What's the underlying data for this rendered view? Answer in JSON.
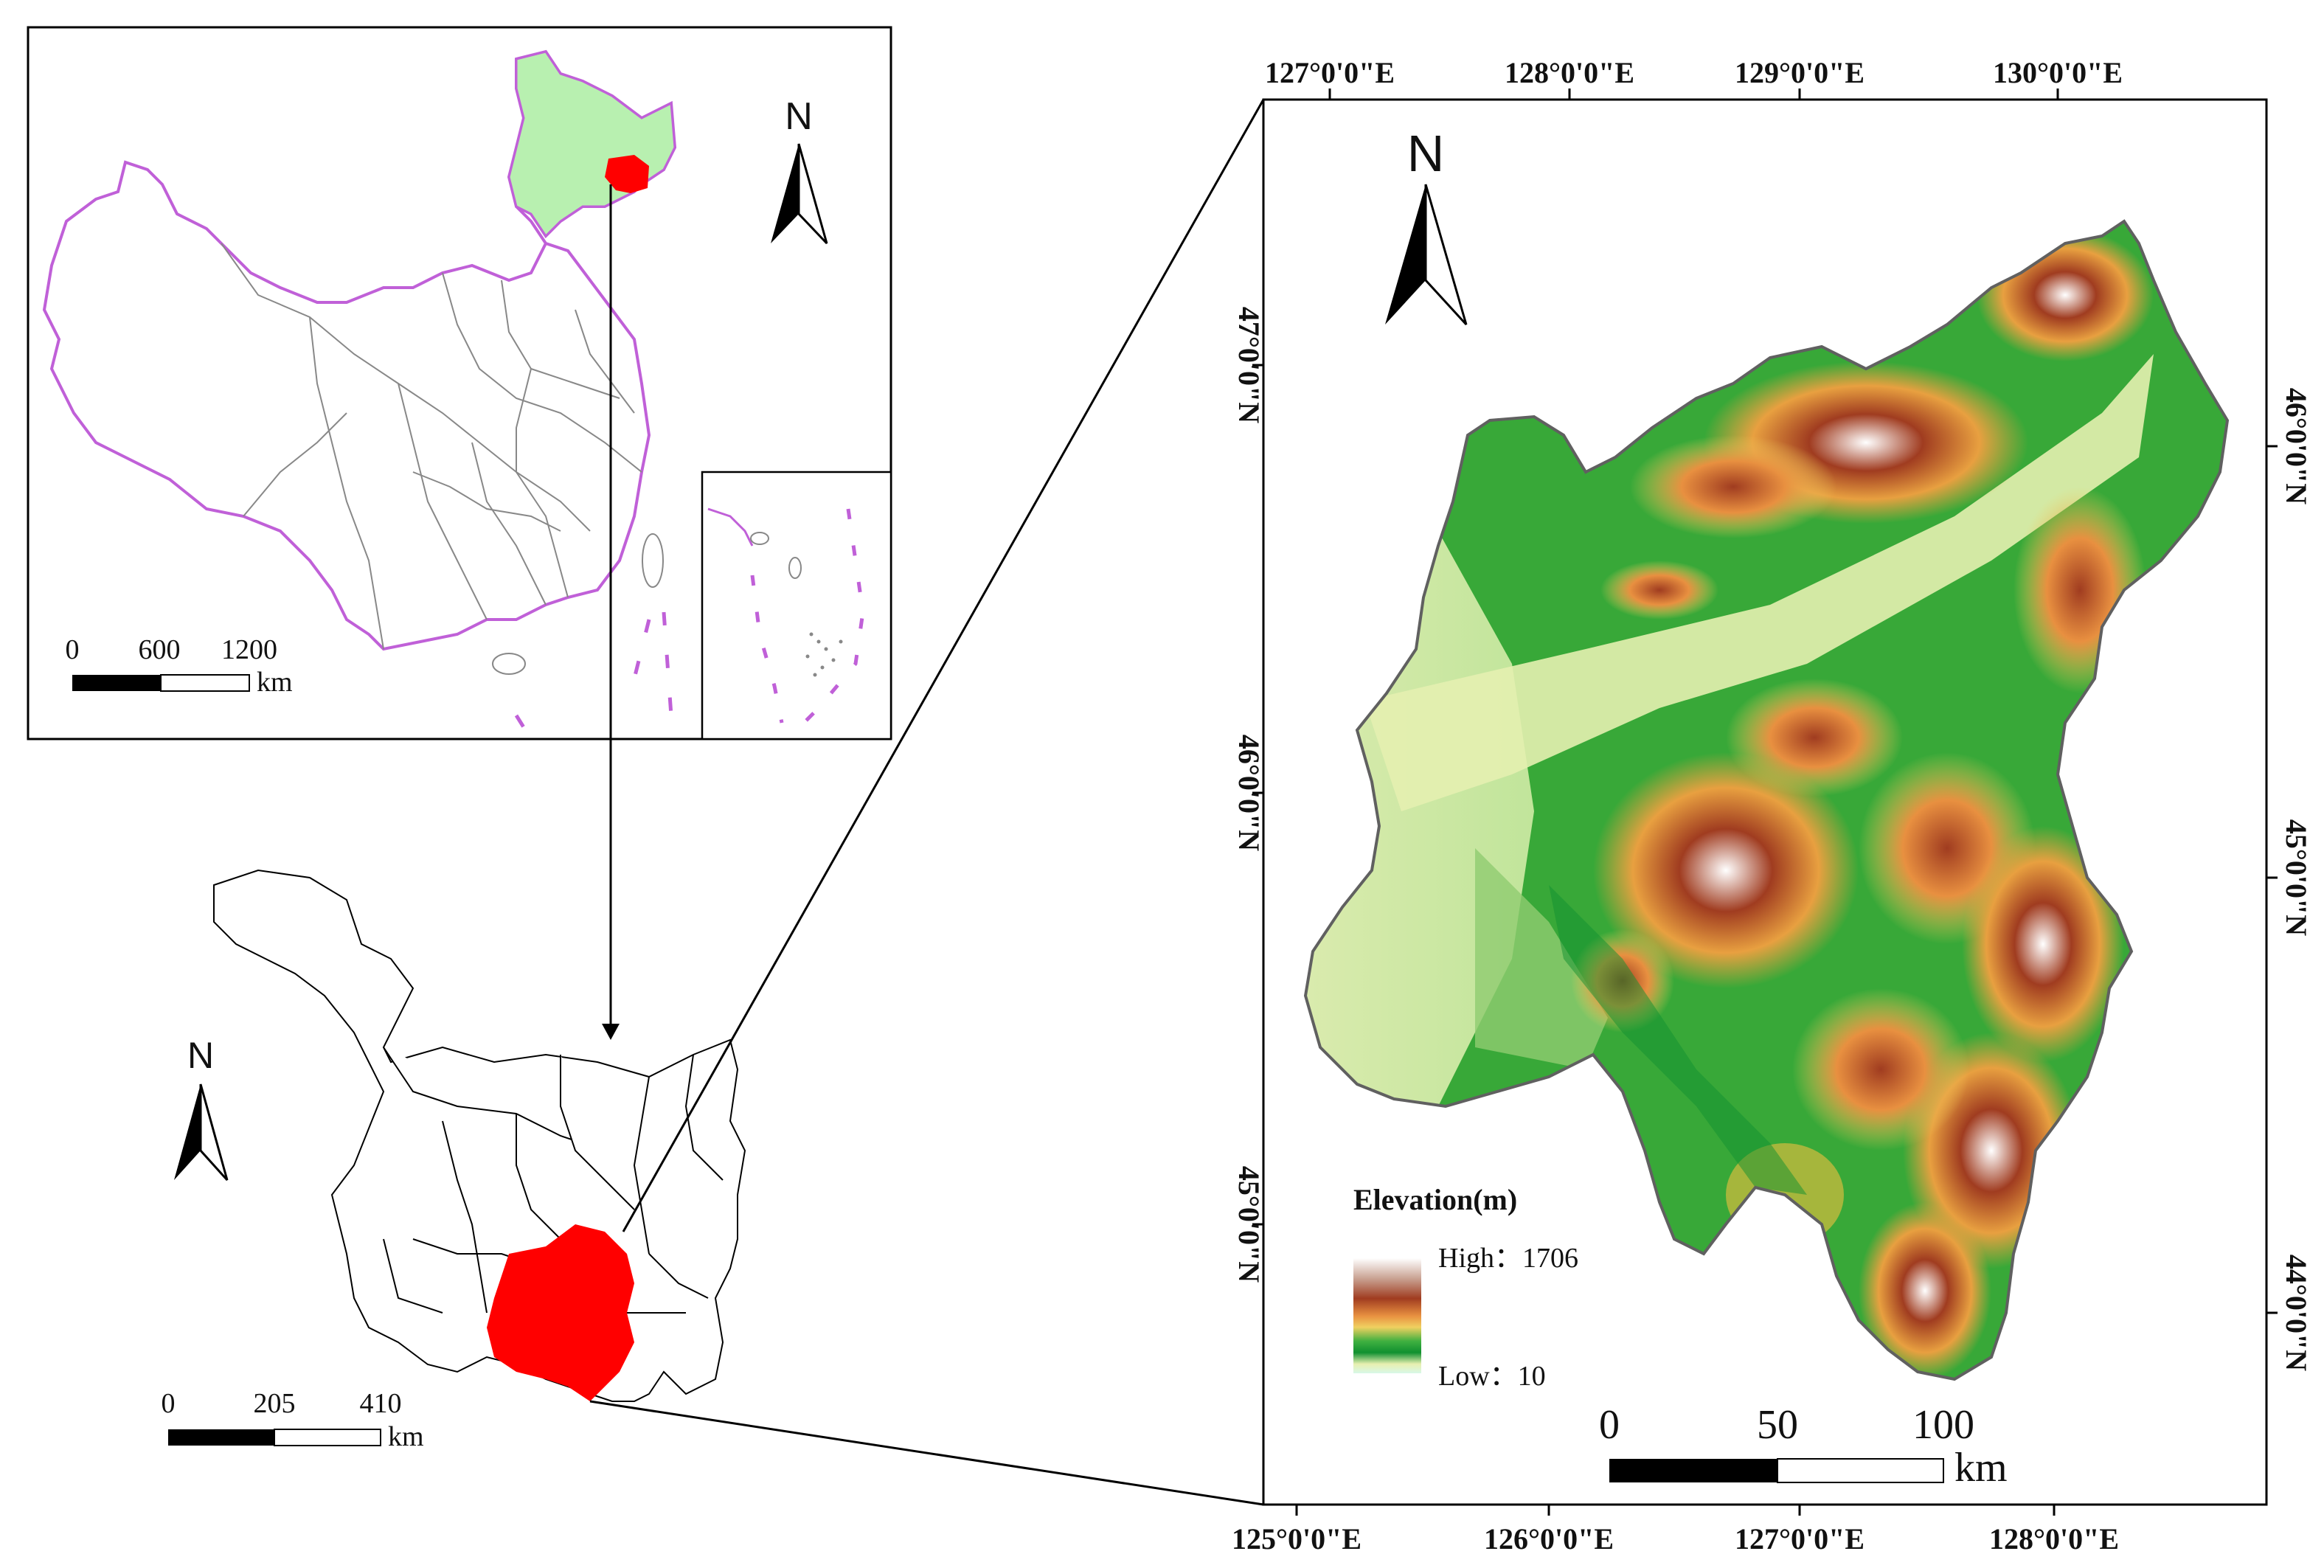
{
  "colors": {
    "study_area_red": "#ff0000",
    "province_green": "#b8f0b0",
    "border_purple": "#c060d8",
    "province_line": "#888888",
    "frame": "#000000"
  },
  "inset_china": {
    "scale_labels": [
      "0",
      "600",
      "1200"
    ],
    "scale_unit": "km",
    "north": "N"
  },
  "inset_province": {
    "scale_labels": [
      "0",
      "205",
      "410"
    ],
    "scale_unit": "km",
    "north": "N"
  },
  "main_map": {
    "north": "N",
    "top_lon_labels": [
      "127°0'0\"E",
      "128°0'0\"E",
      "129°0'0\"E",
      "130°0'0\"E"
    ],
    "bottom_lon_labels": [
      "125°0'0\"E",
      "126°0'0\"E",
      "127°0'0\"E",
      "128°0'0\"E"
    ],
    "left_lat_labels": [
      "47°0'0\"N",
      "46°0'0\"N",
      "45°0'0\"N"
    ],
    "right_lat_labels": [
      "46°0'0\"N",
      "45°0'0\"N",
      "44°0'0\"N"
    ],
    "legend": {
      "title": "Elevation(m)",
      "high_label": "High：1706",
      "low_label": "Low：10",
      "colors": [
        "#ffffff",
        "#c8a090",
        "#a03c20",
        "#e89040",
        "#f0d060",
        "#40b040",
        "#109030",
        "#e8f0b0",
        "#d8f8e8"
      ]
    },
    "scale_labels": [
      "0",
      "50",
      "100"
    ],
    "scale_unit": "km"
  },
  "icons": [
    "north-arrow-icon"
  ]
}
